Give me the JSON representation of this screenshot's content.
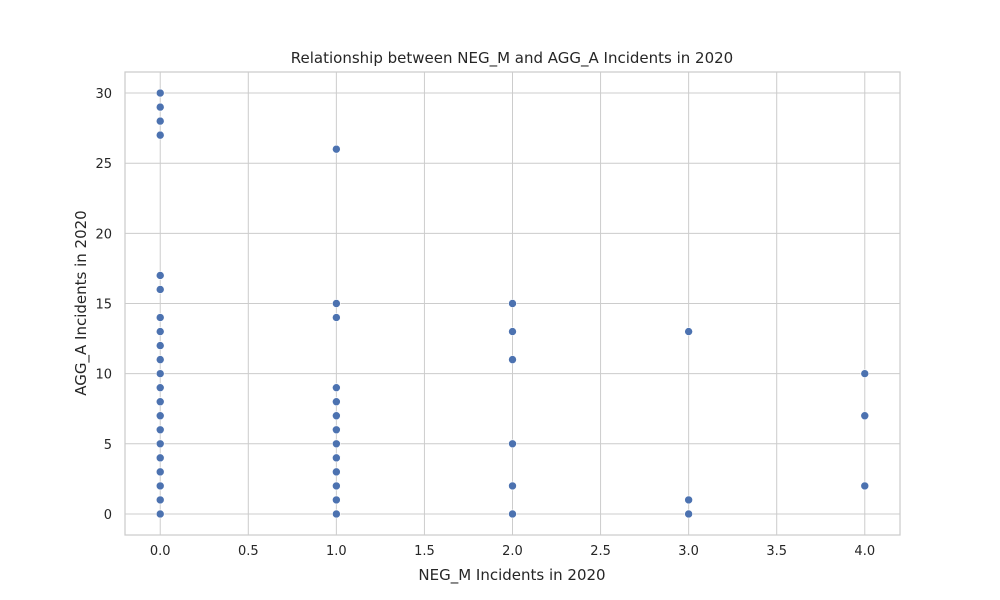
{
  "chart_data": {
    "type": "scatter",
    "title": "Relationship between NEG_M and AGG_A Incidents in 2020",
    "xlabel": "NEG_M Incidents in 2020",
    "ylabel": "AGG_A Incidents in 2020",
    "xlim": [
      -0.2,
      4.2
    ],
    "ylim": [
      -1.5,
      31.5
    ],
    "xticks": [
      0.0,
      0.5,
      1.0,
      1.5,
      2.0,
      2.5,
      3.0,
      3.5,
      4.0
    ],
    "xtick_labels": [
      "0.0",
      "0.5",
      "1.0",
      "1.5",
      "2.0",
      "2.5",
      "3.0",
      "3.5",
      "4.0"
    ],
    "yticks": [
      0,
      5,
      10,
      15,
      20,
      25,
      30
    ],
    "ytick_labels": [
      "0",
      "5",
      "10",
      "15",
      "20",
      "25",
      "30"
    ],
    "grid": true,
    "marker_color": "#4c72b0",
    "points": [
      {
        "x": 0,
        "y": 0
      },
      {
        "x": 0,
        "y": 1
      },
      {
        "x": 0,
        "y": 2
      },
      {
        "x": 0,
        "y": 3
      },
      {
        "x": 0,
        "y": 4
      },
      {
        "x": 0,
        "y": 5
      },
      {
        "x": 0,
        "y": 6
      },
      {
        "x": 0,
        "y": 7
      },
      {
        "x": 0,
        "y": 8
      },
      {
        "x": 0,
        "y": 9
      },
      {
        "x": 0,
        "y": 10
      },
      {
        "x": 0,
        "y": 11
      },
      {
        "x": 0,
        "y": 12
      },
      {
        "x": 0,
        "y": 13
      },
      {
        "x": 0,
        "y": 14
      },
      {
        "x": 0,
        "y": 16
      },
      {
        "x": 0,
        "y": 17
      },
      {
        "x": 0,
        "y": 27
      },
      {
        "x": 0,
        "y": 28
      },
      {
        "x": 0,
        "y": 29
      },
      {
        "x": 0,
        "y": 30
      },
      {
        "x": 1,
        "y": 0
      },
      {
        "x": 1,
        "y": 1
      },
      {
        "x": 1,
        "y": 2
      },
      {
        "x": 1,
        "y": 3
      },
      {
        "x": 1,
        "y": 4
      },
      {
        "x": 1,
        "y": 5
      },
      {
        "x": 1,
        "y": 6
      },
      {
        "x": 1,
        "y": 7
      },
      {
        "x": 1,
        "y": 8
      },
      {
        "x": 1,
        "y": 9
      },
      {
        "x": 1,
        "y": 14
      },
      {
        "x": 1,
        "y": 15
      },
      {
        "x": 1,
        "y": 26
      },
      {
        "x": 2,
        "y": 0
      },
      {
        "x": 2,
        "y": 2
      },
      {
        "x": 2,
        "y": 5
      },
      {
        "x": 2,
        "y": 11
      },
      {
        "x": 2,
        "y": 13
      },
      {
        "x": 2,
        "y": 15
      },
      {
        "x": 3,
        "y": 0
      },
      {
        "x": 3,
        "y": 1
      },
      {
        "x": 3,
        "y": 13
      },
      {
        "x": 4,
        "y": 2
      },
      {
        "x": 4,
        "y": 7
      },
      {
        "x": 4,
        "y": 10
      }
    ]
  }
}
